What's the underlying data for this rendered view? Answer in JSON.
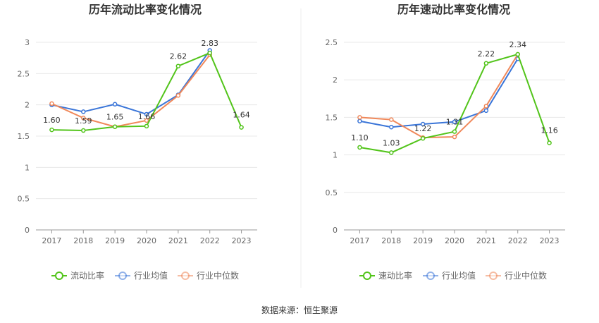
{
  "source": "数据来源：恒生聚源",
  "chart_data": [
    {
      "type": "line",
      "title": "历年流动比率变化情况",
      "categories": [
        "2017",
        "2018",
        "2019",
        "2020",
        "2021",
        "2022",
        "2023"
      ],
      "ylim": [
        0,
        3
      ],
      "yticks": [
        "0",
        "0.5",
        "1",
        "1.5",
        "2",
        "2.5",
        "3"
      ],
      "grid": true,
      "legend_position": "bottom",
      "series": [
        {
          "name": "流动比率",
          "color": "#52c41a",
          "values": [
            1.6,
            1.59,
            1.65,
            1.66,
            2.62,
            2.83,
            1.64
          ],
          "labels": [
            "1.60",
            "1.59",
            "1.65",
            "1.66",
            "2.62",
            "2.83",
            "1.64"
          ]
        },
        {
          "name": "行业均值",
          "color": "#3a75d8",
          "values": [
            2.0,
            1.89,
            2.01,
            1.85,
            2.16,
            2.87,
            null
          ]
        },
        {
          "name": "行业中位数",
          "color": "#f0885a",
          "values": [
            2.02,
            1.79,
            1.65,
            1.75,
            2.15,
            2.8,
            null
          ]
        }
      ]
    },
    {
      "type": "line",
      "title": "历年速动比率变化情况",
      "categories": [
        "2017",
        "2018",
        "2019",
        "2020",
        "2021",
        "2022",
        "2023"
      ],
      "ylim": [
        0,
        2.5
      ],
      "yticks": [
        "0",
        "0.5",
        "1",
        "1.5",
        "2",
        "2.5"
      ],
      "grid": true,
      "legend_position": "bottom",
      "series": [
        {
          "name": "速动比率",
          "color": "#52c41a",
          "values": [
            1.1,
            1.03,
            1.22,
            1.31,
            2.22,
            2.34,
            1.16
          ],
          "labels": [
            "1.10",
            "1.03",
            "1.22",
            "1.31",
            "2.22",
            "2.34",
            "1.16"
          ]
        },
        {
          "name": "行业均值",
          "color": "#3a75d8",
          "values": [
            1.45,
            1.37,
            1.41,
            1.44,
            1.59,
            2.28,
            null
          ]
        },
        {
          "name": "行业中位数",
          "color": "#f0885a",
          "values": [
            1.5,
            1.47,
            1.23,
            1.24,
            1.65,
            2.34,
            null
          ]
        }
      ]
    }
  ]
}
